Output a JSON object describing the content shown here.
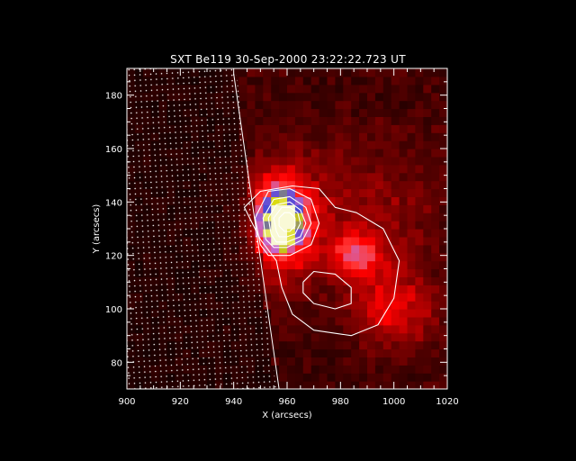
{
  "title": "SXT Be119 30-Sep-2000 23:22:22.723 UT",
  "chart_data": {
    "type": "heatmap",
    "title": "SXT Be119 30-Sep-2000 23:22:22.723 UT",
    "xlabel": "X (arcsecs)",
    "ylabel": "Y (arcsecs)",
    "xlim": [
      900,
      1020
    ],
    "ylim": [
      70,
      190
    ],
    "x_ticks": [
      "900",
      "920",
      "940",
      "960",
      "980",
      "1000",
      "1020"
    ],
    "y_ticks": [
      "80",
      "100",
      "120",
      "140",
      "160",
      "180"
    ],
    "x_tick_values": [
      900,
      920,
      940,
      960,
      980,
      1000,
      1020
    ],
    "y_tick_values": [
      80,
      100,
      120,
      140,
      160,
      180
    ],
    "colormap": [
      "#000000",
      "#5a0000",
      "#b00000",
      "#ff0000",
      "#ff3a3a",
      "#c868c8",
      "#4848d8",
      "#d8d800",
      "#ffffff"
    ],
    "limb_line": [
      [
        940,
        188
      ],
      [
        957,
        70
      ]
    ],
    "brightness_peaks": [
      {
        "x": 958,
        "y": 133,
        "intensity": 1.0
      },
      {
        "x": 986,
        "y": 120,
        "intensity": 0.55
      },
      {
        "x": 1000,
        "y": 100,
        "intensity": 0.25
      }
    ],
    "contours": [
      {
        "level": "outer",
        "points": [
          [
            950,
            126
          ],
          [
            944,
            138
          ],
          [
            950,
            144
          ],
          [
            962,
            146
          ],
          [
            972,
            145
          ],
          [
            978,
            138
          ],
          [
            986,
            136
          ],
          [
            996,
            130
          ],
          [
            1002,
            118
          ],
          [
            1000,
            104
          ],
          [
            994,
            94
          ],
          [
            984,
            90
          ],
          [
            970,
            92
          ],
          [
            962,
            98
          ],
          [
            958,
            108
          ],
          [
            956,
            118
          ],
          [
            950,
            126
          ]
        ]
      },
      {
        "level": "hole",
        "points": [
          [
            966,
            110
          ],
          [
            970,
            114
          ],
          [
            978,
            113
          ],
          [
            984,
            108
          ],
          [
            984,
            102
          ],
          [
            978,
            100
          ],
          [
            970,
            102
          ],
          [
            966,
            106
          ],
          [
            966,
            110
          ]
        ]
      },
      {
        "level": "c3",
        "points": [
          [
            950,
            124
          ],
          [
            948,
            134
          ],
          [
            953,
            144
          ],
          [
            961,
            145
          ],
          [
            969,
            141
          ],
          [
            972,
            132
          ],
          [
            969,
            124
          ],
          [
            961,
            120
          ],
          [
            953,
            120
          ],
          [
            950,
            124
          ]
        ]
      },
      {
        "level": "c4",
        "points": [
          [
            952,
            126
          ],
          [
            951,
            134
          ],
          [
            955,
            141
          ],
          [
            961,
            142
          ],
          [
            967,
            138
          ],
          [
            969,
            132
          ],
          [
            966,
            126
          ],
          [
            960,
            123
          ],
          [
            955,
            123
          ],
          [
            952,
            126
          ]
        ]
      },
      {
        "level": "c5",
        "points": [
          [
            954,
            128
          ],
          [
            953,
            134
          ],
          [
            956,
            139
          ],
          [
            961,
            140
          ],
          [
            965,
            137
          ],
          [
            967,
            132
          ],
          [
            965,
            127
          ],
          [
            960,
            125
          ],
          [
            956,
            125
          ],
          [
            954,
            128
          ]
        ]
      },
      {
        "level": "c6",
        "points": [
          [
            956,
            129
          ],
          [
            955,
            134
          ],
          [
            958,
            138
          ],
          [
            961,
            138
          ],
          [
            964,
            136
          ],
          [
            965,
            132
          ],
          [
            963,
            128
          ],
          [
            960,
            127
          ],
          [
            957,
            127
          ],
          [
            956,
            129
          ]
        ]
      },
      {
        "level": "c7",
        "points": [
          [
            957,
            131
          ],
          [
            957,
            134
          ],
          [
            959,
            136
          ],
          [
            961,
            136
          ],
          [
            963,
            134
          ],
          [
            963,
            131
          ],
          [
            961,
            129
          ],
          [
            959,
            129
          ],
          [
            957,
            131
          ]
        ]
      }
    ]
  }
}
